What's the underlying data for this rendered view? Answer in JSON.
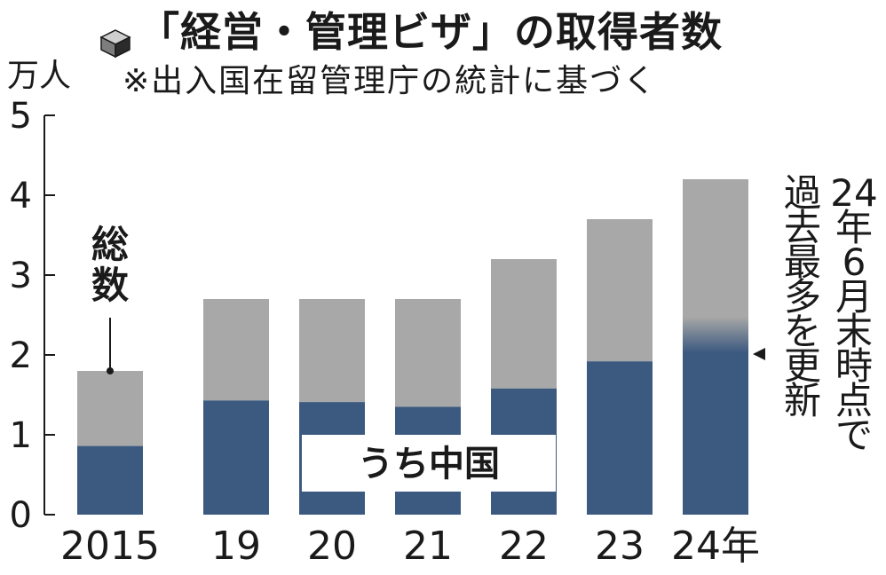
{
  "header": {
    "title": "「経営・管理ビザ」の取得者数",
    "subtitle": "※出入国在留管理庁の統計に基づく",
    "unit": "万人"
  },
  "colors": {
    "total": "#a8a8a8",
    "china": "#3c5a80",
    "text": "#1a1a1a"
  },
  "chart_data": {
    "type": "bar",
    "categories": [
      "2015",
      "19",
      "20",
      "21",
      "22",
      "23",
      "24年"
    ],
    "series": [
      {
        "name": "総数",
        "values": [
          1.8,
          2.7,
          2.7,
          2.7,
          3.2,
          3.7,
          4.2
        ]
      },
      {
        "name": "うち中国",
        "values": [
          0.86,
          1.43,
          1.41,
          1.35,
          1.58,
          1.92,
          2.1
        ]
      }
    ],
    "ylim": [
      0,
      5
    ],
    "yticks": [
      0,
      1,
      2,
      3,
      4,
      5
    ],
    "annotations": {
      "total_label": "総数",
      "china_label": "うち中国",
      "record_note": "24年6月末時点で過去最多を更新"
    }
  }
}
